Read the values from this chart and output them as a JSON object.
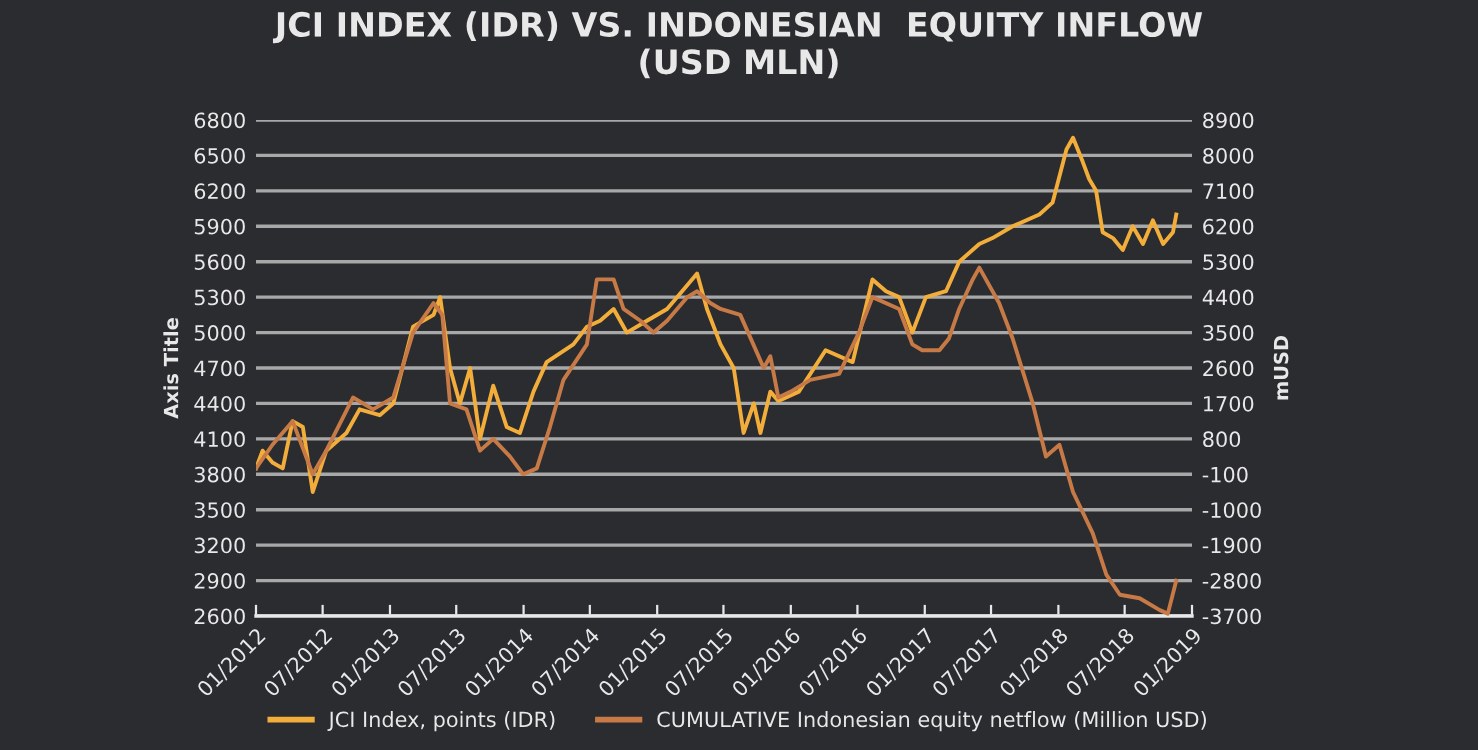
{
  "chart_data": {
    "type": "line",
    "title": "JCI INDEX (IDR) VS. INDONESIAN  EQUITY INFLOW\n(USD MLN)",
    "ylabel": "Axis Title",
    "y2label": "mUSD",
    "xlim": [
      "2012-01-01",
      "2019-01-01"
    ],
    "xticks": [
      {
        "value": "2012-01-01",
        "label": "01/2012"
      },
      {
        "value": "2012-07-01",
        "label": "07/2012"
      },
      {
        "value": "2013-01-01",
        "label": "01/2013"
      },
      {
        "value": "2013-07-01",
        "label": "07/2013"
      },
      {
        "value": "2014-01-01",
        "label": "01/2014"
      },
      {
        "value": "2014-07-01",
        "label": "07/2014"
      },
      {
        "value": "2015-01-01",
        "label": "01/2015"
      },
      {
        "value": "2015-07-01",
        "label": "07/2015"
      },
      {
        "value": "2016-01-01",
        "label": "01/2016"
      },
      {
        "value": "2016-07-01",
        "label": "07/2016"
      },
      {
        "value": "2017-01-01",
        "label": "01/2017"
      },
      {
        "value": "2017-07-01",
        "label": "07/2017"
      },
      {
        "value": "2018-01-01",
        "label": "01/2018"
      },
      {
        "value": "2018-07-01",
        "label": "07/2018"
      },
      {
        "value": "2019-01-01",
        "label": "01/2019"
      }
    ],
    "ylim": [
      2600,
      6800
    ],
    "yticks": [
      2600,
      2900,
      3200,
      3500,
      3800,
      4100,
      4400,
      4700,
      5000,
      5300,
      5600,
      5900,
      6200,
      6500,
      6800
    ],
    "y2lim": [
      -3700,
      8900
    ],
    "y2ticks": [
      -3700,
      -2800,
      -1900,
      -1000,
      -100,
      800,
      1700,
      2600,
      3500,
      4400,
      5300,
      6200,
      7100,
      8000,
      8900
    ],
    "grid": "y",
    "legend": "bottom",
    "series": [
      {
        "name": "JCI Index, points (IDR)",
        "color": "#f2ad3a",
        "x": [
          "2012-01-01",
          "2012-01-19",
          "2012-02-15",
          "2012-03-14",
          "2012-04-10",
          "2012-05-08",
          "2012-06-04",
          "2012-07-11",
          "2012-09-04",
          "2012-10-10",
          "2012-12-04",
          "2013-01-10",
          "2013-03-05",
          "2013-04-30",
          "2013-05-18",
          "2013-06-14",
          "2013-07-11",
          "2013-08-08",
          "2013-09-04",
          "2013-10-10",
          "2013-11-16",
          "2013-12-22",
          "2014-01-28",
          "2014-03-05",
          "2014-05-17",
          "2014-06-23",
          "2014-07-29",
          "2014-09-04",
          "2014-10-10",
          "2014-12-04",
          "2015-01-28",
          "2015-03-24",
          "2015-04-20",
          "2015-05-17",
          "2015-06-23",
          "2015-07-29",
          "2015-08-25",
          "2015-09-22",
          "2015-10-10",
          "2015-11-06",
          "2015-11-28",
          "2016-01-23",
          "2016-04-05",
          "2016-06-18",
          "2016-08-11",
          "2016-09-17",
          "2016-10-23",
          "2016-11-28",
          "2017-01-04",
          "2017-02-28",
          "2017-04-05",
          "2017-05-30",
          "2017-07-05",
          "2017-08-29",
          "2017-11-10",
          "2017-12-16",
          "2018-01-23",
          "2018-02-10",
          "2018-03-08",
          "2018-03-26",
          "2018-04-14",
          "2018-05-02",
          "2018-05-30",
          "2018-06-26",
          "2018-07-23",
          "2018-08-20",
          "2018-09-16",
          "2018-10-14",
          "2018-11-10",
          "2018-11-19"
        ],
        "values": [
          3850,
          4000,
          3900,
          3850,
          4250,
          4200,
          3650,
          4000,
          4150,
          4350,
          4300,
          4400,
          5050,
          5150,
          5300,
          4700,
          4400,
          4700,
          4100,
          4550,
          4200,
          4150,
          4500,
          4750,
          4900,
          5050,
          5100,
          5200,
          5000,
          5100,
          5200,
          5400,
          5500,
          5200,
          4900,
          4700,
          4150,
          4400,
          4150,
          4500,
          4420,
          4500,
          4850,
          4750,
          5450,
          5350,
          5300,
          5000,
          5300,
          5350,
          5600,
          5750,
          5800,
          5900,
          6000,
          6100,
          6550,
          6650,
          6450,
          6300,
          6200,
          5850,
          5800,
          5700,
          5900,
          5750,
          5950,
          5750,
          5850,
          6000
        ]
      },
      {
        "name": "CUMULATIVE Indonesian equity netflow (Million USD)",
        "axis": "y2",
        "color": "#c77a45",
        "x": [
          "2012-01-01",
          "2012-02-15",
          "2012-04-10",
          "2012-06-04",
          "2012-07-11",
          "2012-09-22",
          "2012-11-16",
          "2013-01-10",
          "2013-03-05",
          "2013-04-30",
          "2013-05-24",
          "2013-06-14",
          "2013-07-29",
          "2013-09-04",
          "2013-10-10",
          "2013-11-25",
          "2013-12-31",
          "2014-02-06",
          "2014-03-14",
          "2014-04-20",
          "2014-06-23",
          "2014-07-20",
          "2014-09-04",
          "2014-10-01",
          "2014-11-16",
          "2014-12-22",
          "2015-01-28",
          "2015-03-24",
          "2015-04-20",
          "2015-05-26",
          "2015-06-23",
          "2015-08-16",
          "2015-10-19",
          "2015-11-06",
          "2015-11-28",
          "2016-01-01",
          "2016-02-23",
          "2016-05-12",
          "2016-07-05",
          "2016-08-11",
          "2016-10-23",
          "2016-11-28",
          "2016-12-25",
          "2017-02-10",
          "2017-03-08",
          "2017-04-05",
          "2017-05-12",
          "2017-05-30",
          "2017-07-23",
          "2017-08-29",
          "2017-10-23",
          "2017-11-28",
          "2018-01-04",
          "2018-02-10",
          "2018-04-05",
          "2018-05-12",
          "2018-06-18",
          "2018-08-11",
          "2018-10-05",
          "2018-10-27",
          "2018-11-19"
        ],
        "values": [
          50,
          650,
          1250,
          -100,
          500,
          1850,
          1550,
          1850,
          3500,
          4250,
          3950,
          1700,
          1550,
          500,
          800,
          350,
          -100,
          50,
          1100,
          2300,
          3200,
          4850,
          4850,
          4100,
          3800,
          3500,
          3800,
          4400,
          4550,
          4250,
          4100,
          3950,
          2600,
          2900,
          1850,
          2000,
          2300,
          2450,
          3500,
          4400,
          4100,
          3200,
          3050,
          3050,
          3350,
          4100,
          4850,
          5150,
          4250,
          3350,
          1700,
          350,
          650,
          -550,
          -1600,
          -2650,
          -3160,
          -3250,
          -3550,
          -3640,
          -2800
        ]
      }
    ]
  }
}
